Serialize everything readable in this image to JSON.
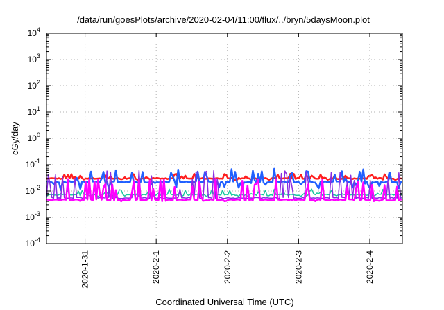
{
  "chart_data": {
    "type": "line",
    "title": "/data/run/goesPlots/archive/2020-02-04/11:00/flux/../bryn/5daysMoon.plot",
    "xlabel": "Coordinated Universal Time (UTC)",
    "ylabel": "cGy/day",
    "scale_y": "log",
    "ylim": [
      0.0001,
      10000
    ],
    "y_ticks": [
      {
        "base": "10",
        "exp": "-4",
        "value": 0.0001
      },
      {
        "base": "10",
        "exp": "-3",
        "value": 0.001
      },
      {
        "base": "10",
        "exp": "-2",
        "value": 0.01
      },
      {
        "base": "10",
        "exp": "-1",
        "value": 0.1
      },
      {
        "base": "10",
        "exp": "0",
        "value": 1
      },
      {
        "base": "10",
        "exp": "1",
        "value": 10
      },
      {
        "base": "10",
        "exp": "2",
        "value": 100
      },
      {
        "base": "10",
        "exp": "3",
        "value": 1000
      },
      {
        "base": "10",
        "exp": "4",
        "value": 10000
      }
    ],
    "xlim": [
      "2020-01-30T11:00",
      "2020-02-04T11:00"
    ],
    "x_ticks": [
      "2020-1-31",
      "2020-2-1",
      "2020-2-2",
      "2020-2-3",
      "2020-2-4"
    ],
    "grid": true,
    "colors": {
      "red": "#ff1e1e",
      "blue": "#2060ff",
      "teal": "#19c8a0",
      "purple": "#8a2be2",
      "magenta": "#ff00ff"
    },
    "series": [
      {
        "color_key": "red",
        "baseline": 0.03,
        "spike_max": 0.045,
        "dip_min": 0.026
      },
      {
        "color_key": "blue",
        "baseline": 0.022,
        "spike_max": 0.07,
        "dip_min": 0.01
      },
      {
        "color_key": "teal",
        "baseline": 0.0072,
        "spike_max": 0.012,
        "dip_min": 0.006
      },
      {
        "color_key": "purple",
        "baseline": 0.0055,
        "spike_max": 0.06,
        "dip_min": 0.005
      },
      {
        "color_key": "magenta",
        "baseline": 0.0046,
        "spike_max": 0.03,
        "dip_min": 0.004
      }
    ]
  }
}
